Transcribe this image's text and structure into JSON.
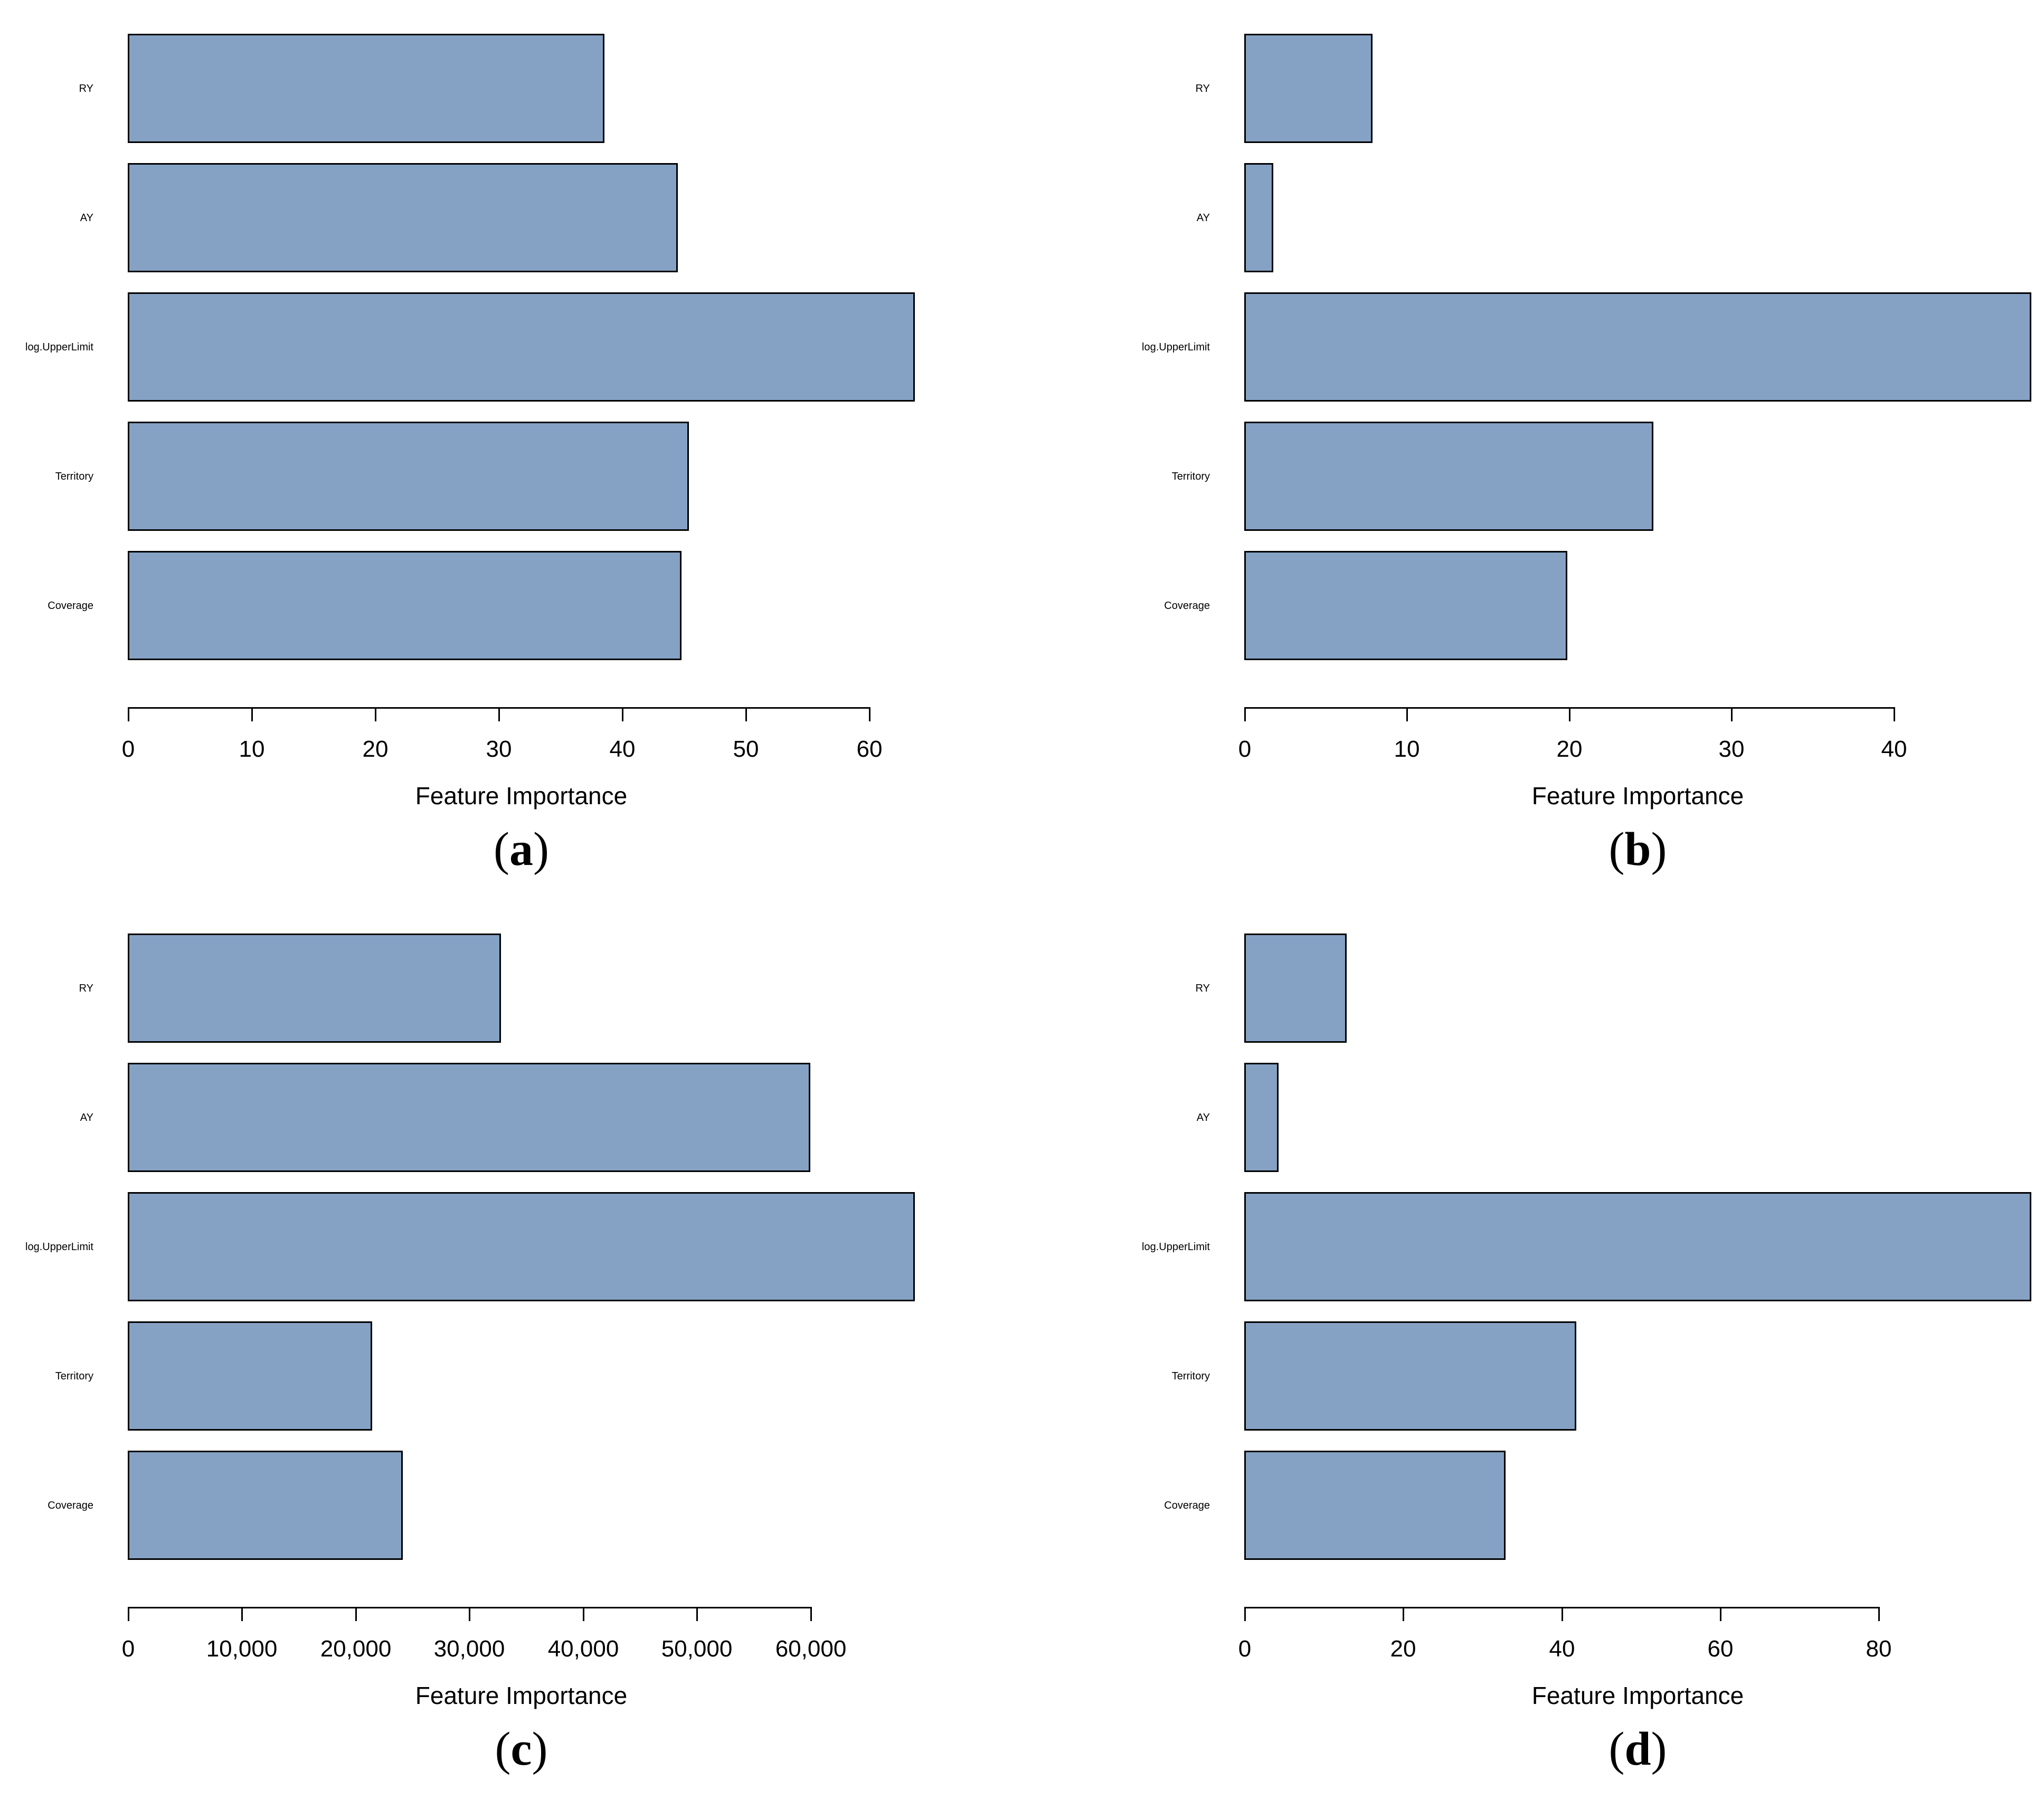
{
  "figure": {
    "background": "#ffffff",
    "bar_fill": "#85A2C5",
    "bar_border": "#000000",
    "axis_color": "#000000",
    "parens": {
      "open": "(",
      "close": ")"
    }
  },
  "chart_data": [
    {
      "type": "bar",
      "orientation": "horizontal",
      "panel_label": "(a)",
      "letter": "a",
      "title": "",
      "xlabel": "Feature Importance",
      "categories": [
        "RY",
        "AY",
        "log.UpperLimit",
        "Territory",
        "Coverage"
      ],
      "values": [
        38.6,
        44.5,
        63.7,
        45.4,
        44.8
      ],
      "xticks": [
        0,
        10,
        20,
        30,
        40,
        50,
        60
      ],
      "xtick_labels": [
        "0",
        "10",
        "20",
        "30",
        "40",
        "50",
        "60"
      ],
      "xlim": [
        0,
        63.7
      ],
      "grid": false,
      "legend": null
    },
    {
      "type": "bar",
      "orientation": "horizontal",
      "panel_label": "(b)",
      "letter": "b",
      "title": "",
      "xlabel": "Feature Importance",
      "categories": [
        "RY",
        "AY",
        "log.UpperLimit",
        "Territory",
        "Coverage"
      ],
      "values": [
        7.9,
        1.8,
        48.5,
        25.2,
        19.9
      ],
      "xticks": [
        0,
        10,
        20,
        30,
        40
      ],
      "xtick_labels": [
        "0",
        "10",
        "20",
        "30",
        "40"
      ],
      "xlim": [
        0,
        48.5
      ],
      "grid": false,
      "legend": null
    },
    {
      "type": "bar",
      "orientation": "horizontal",
      "panel_label": "(c)",
      "letter": "c",
      "title": "",
      "xlabel": "Feature Importance",
      "categories": [
        "RY",
        "AY",
        "log.UpperLimit",
        "Territory",
        "Coverage"
      ],
      "values": [
        32800,
        60000,
        69200,
        21500,
        24200
      ],
      "xticks": [
        0,
        10000,
        20000,
        30000,
        40000,
        50000,
        60000
      ],
      "xtick_labels": [
        "0",
        "10,000",
        "20,000",
        "30,000",
        "40,000",
        "50,000",
        "60,000"
      ],
      "xlim": [
        0,
        69200
      ],
      "grid": false,
      "legend": null
    },
    {
      "type": "bar",
      "orientation": "horizontal",
      "panel_label": "(d)",
      "letter": "d",
      "title": "",
      "xlabel": "Feature Importance",
      "categories": [
        "RY",
        "AY",
        "log.UpperLimit",
        "Territory",
        "Coverage"
      ],
      "values": [
        12.9,
        4.3,
        99.3,
        41.9,
        33.0
      ],
      "xticks": [
        0,
        20,
        40,
        60,
        80
      ],
      "xtick_labels": [
        "0",
        "20",
        "40",
        "60",
        "80"
      ],
      "xlim": [
        0,
        99.3
      ],
      "grid": false,
      "legend": null
    }
  ]
}
